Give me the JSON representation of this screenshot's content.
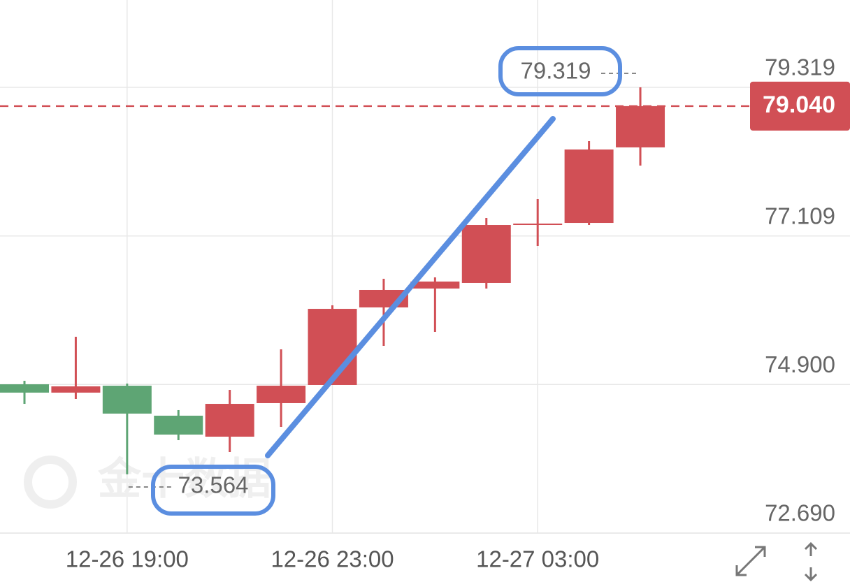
{
  "chart_data": {
    "type": "candlestick",
    "categories": [
      null,
      null,
      "12-26 19:00",
      null,
      null,
      null,
      "12-26 23:00",
      null,
      null,
      null,
      "12-27 03:00",
      null,
      null
    ],
    "open": [
      74.903,
      74.779,
      74.882,
      74.436,
      74.124,
      74.623,
      74.893,
      76.046,
      76.327,
      76.41,
      77.283,
      77.303,
      78.426
    ],
    "high": [
      74.955,
      75.61,
      74.914,
      74.519,
      74.82,
      75.423,
      76.077,
      76.472,
      76.493,
      77.376,
      77.657,
      78.519,
      79.319
    ],
    "low": [
      74.612,
      74.685,
      73.564,
      74.072,
      73.895,
      74.269,
      74.893,
      75.475,
      75.683,
      76.327,
      76.961,
      77.272,
      78.156
    ],
    "close": [
      74.779,
      74.872,
      74.467,
      74.155,
      74.612,
      74.882,
      76.025,
      76.306,
      76.431,
      77.272,
      77.293,
      78.395,
      79.04
    ],
    "up_color": "#d14f55",
    "down_color": "#5ea574",
    "ylim": [
      72.69,
      80.618
    ],
    "yticks": [
      {
        "value": 72.69,
        "label": "72.690"
      },
      {
        "value": 74.9,
        "label": "74.900"
      },
      77.109,
      79.319
    ],
    "last_price": {
      "value": 79.04,
      "label": "79.040"
    },
    "grid": true,
    "watermark": "金十数据"
  }
}
